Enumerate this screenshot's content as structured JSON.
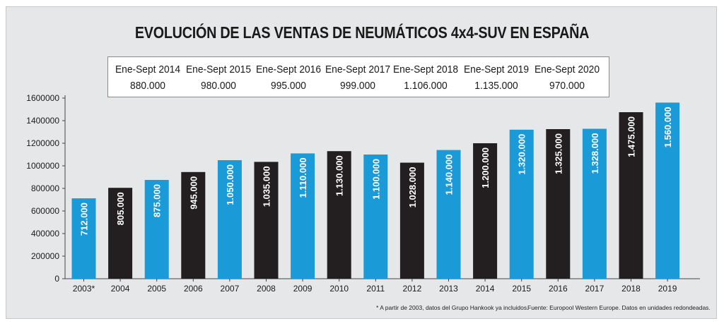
{
  "title": "EVOLUCIÓN DE LAS VENTAS DE NEUMÁTICOS 4x4-SUV EN ESPAÑA",
  "summary": [
    {
      "period": "Ene-Sept 2014",
      "value": "880.000"
    },
    {
      "period": "Ene-Sept 2015",
      "value": "980.000"
    },
    {
      "period": "Ene-Sept 2016",
      "value": "995.000"
    },
    {
      "period": "Ene-Sept 2017",
      "value": "999.000"
    },
    {
      "period": "Ene-Sept 2018",
      "value": "1.106.000"
    },
    {
      "period": "Ene-Sept 2019",
      "value": "1.135.000"
    },
    {
      "period": "Ene-Sept 2020",
      "value": "970.000"
    }
  ],
  "footnote": "* A partir de 2003, datos del Grupo Hankook ya incluidos.",
  "source": "Fuente: Europool Western Europe. Datos en unidades redondeadas.",
  "colors": {
    "blue": "#1a9ad7",
    "black": "#231f20",
    "background": "#e6e7e8"
  },
  "chart_data": {
    "type": "bar",
    "categories": [
      "2003*",
      "2004",
      "2005",
      "2006",
      "2007",
      "2008",
      "2009",
      "2010",
      "2011",
      "2012",
      "2013",
      "2014",
      "2015",
      "2016",
      "2017",
      "2018",
      "2019"
    ],
    "values": [
      712000,
      805000,
      875000,
      945000,
      1050000,
      1035000,
      1110000,
      1130000,
      1100000,
      1028000,
      1140000,
      1200000,
      1320000,
      1325000,
      1328000,
      1475000,
      1560000
    ],
    "data_labels": [
      "712.000",
      "805.000",
      "875.000",
      "945.000",
      "1.050.000",
      "1.035.000",
      "1.110.000",
      "1.130.000",
      "1.100.000",
      "1.028.000",
      "1.140.000",
      "1.200.000",
      "1.320.000",
      "1.325.000",
      "1.328.000",
      "1.475.000",
      "1.560.000"
    ],
    "bar_colors": [
      "blue",
      "black",
      "blue",
      "black",
      "blue",
      "black",
      "blue",
      "black",
      "blue",
      "black",
      "blue",
      "black",
      "blue",
      "black",
      "blue",
      "black",
      "blue"
    ],
    "yticks": [
      0,
      200000,
      400000,
      600000,
      800000,
      1000000,
      1200000,
      1400000,
      1600000
    ],
    "ytick_labels": [
      "0",
      "200000",
      "400000",
      "600000",
      "800000",
      "1000000",
      "1200000",
      "1400000",
      "1600000"
    ],
    "ylim": [
      0,
      1600000
    ],
    "grid": false,
    "title": "EVOLUCIÓN DE LAS VENTAS DE NEUMÁTICOS 4x4-SUV EN ESPAÑA",
    "xlabel": "",
    "ylabel": ""
  }
}
